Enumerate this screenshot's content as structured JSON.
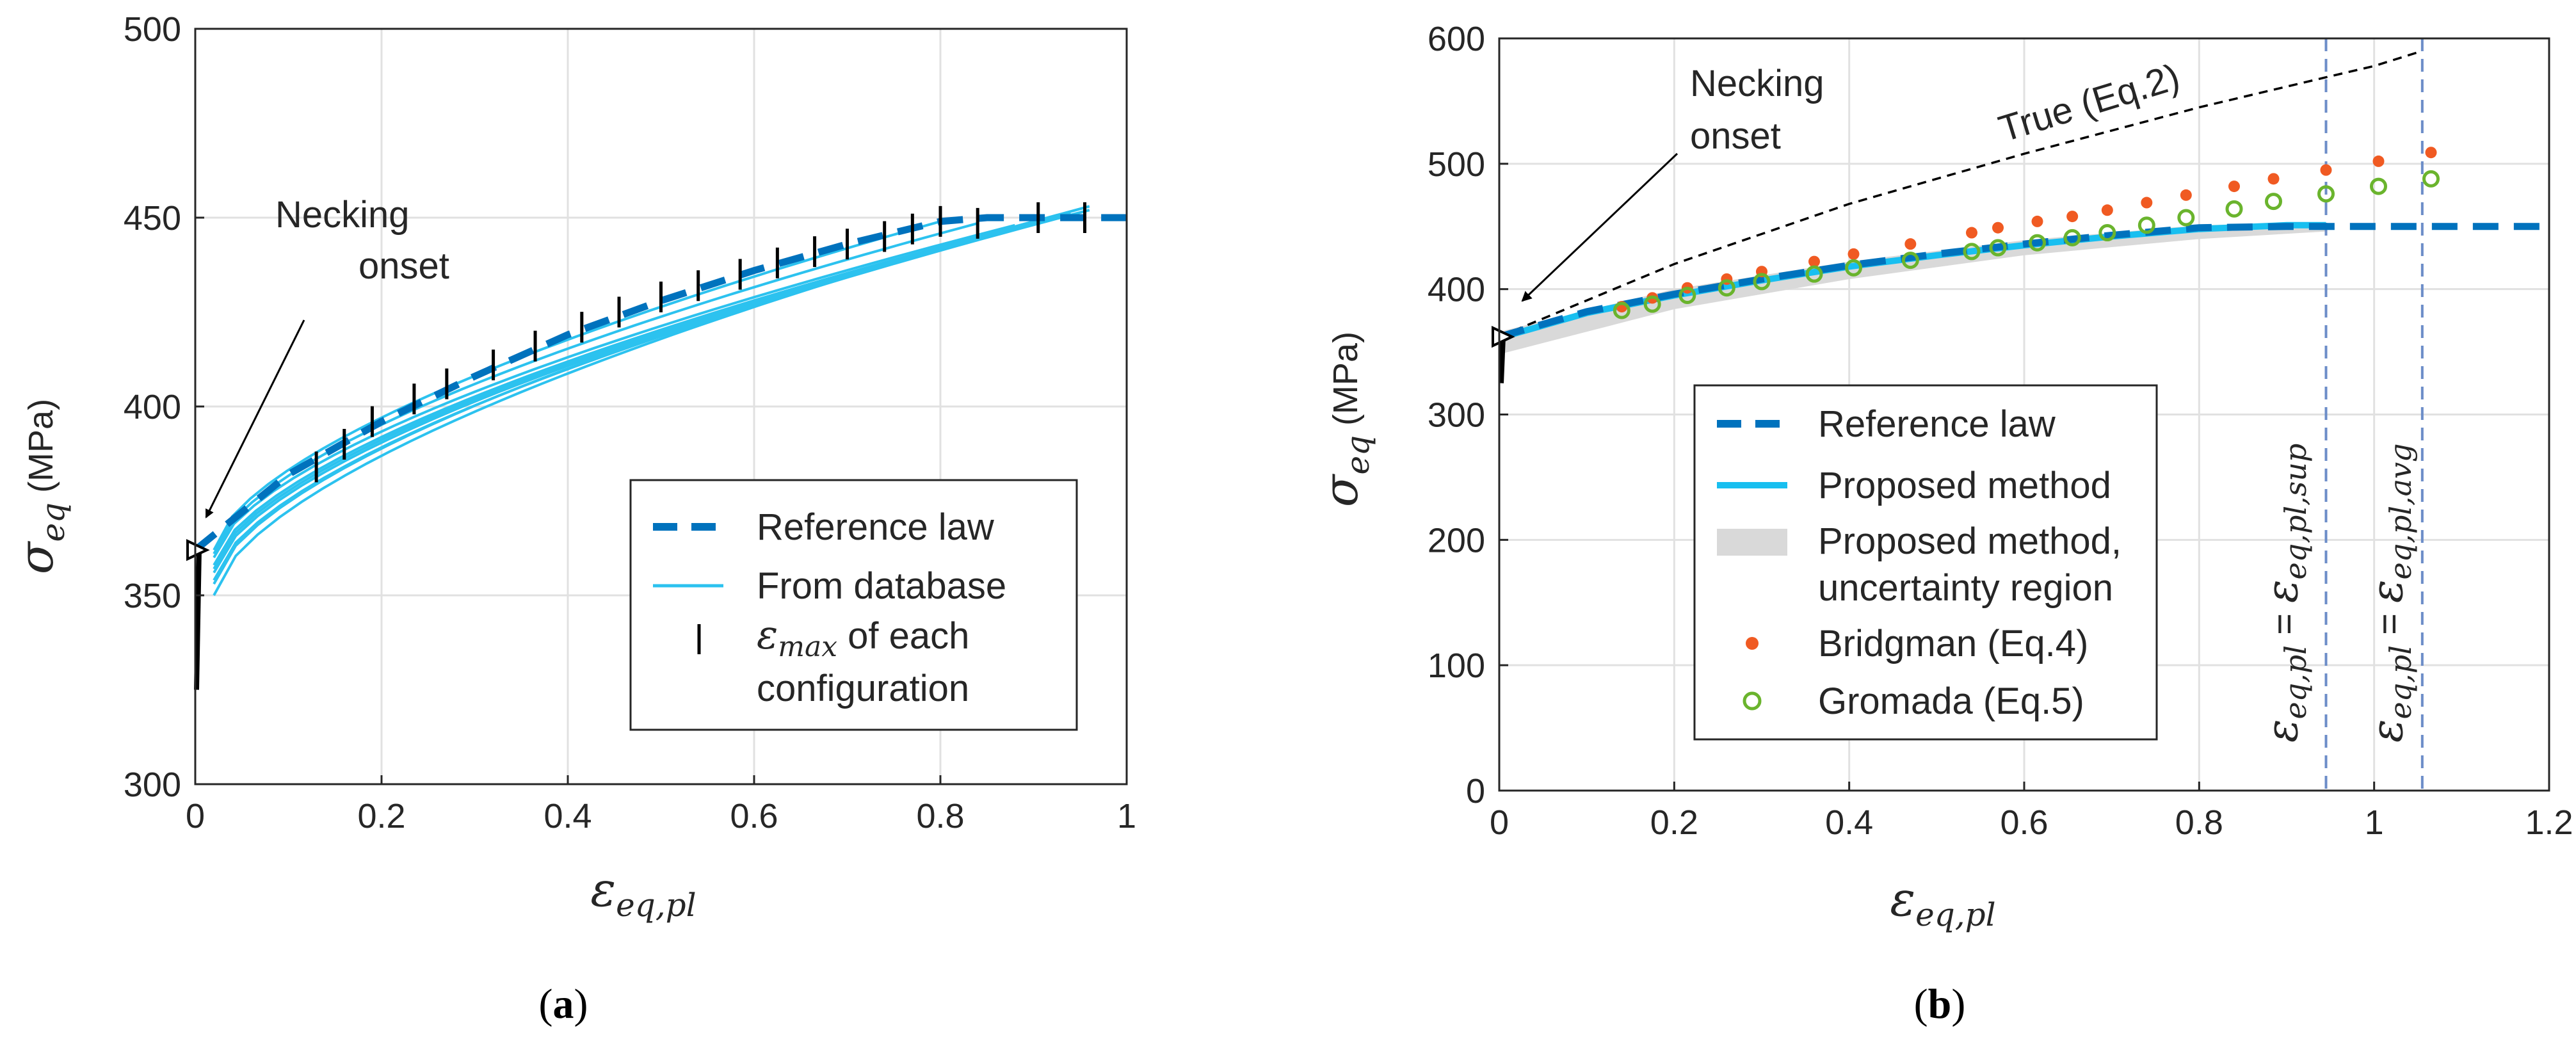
{
  "chart_data": [
    {
      "type": "line",
      "panel": "(a)",
      "xlabel": "ε_eq,pl",
      "ylabel": "σ_eq (MPa)",
      "xlim": [
        0,
        1
      ],
      "ylim": [
        300,
        500
      ],
      "xticks": [
        "0",
        "0.2",
        "0.4",
        "0.6",
        "0.8",
        "1"
      ],
      "yticks": [
        "300",
        "350",
        "400",
        "450",
        "500"
      ],
      "grid": true,
      "legend_position": "bottom-right",
      "annotation": "Necking onset",
      "legend": [
        "Reference law",
        "From database",
        "ε_max of each configuration"
      ],
      "reference_law": {
        "x": [
          0,
          0.1,
          0.2,
          0.3,
          0.4,
          0.5,
          0.6,
          0.7,
          0.8,
          0.85,
          0.9,
          0.95,
          1.0
        ],
        "y": [
          362,
          382,
          396,
          408,
          419,
          428,
          436,
          443,
          449,
          450,
          450,
          450,
          450
        ]
      },
      "database_curves": [
        {
          "x_end": 0.8,
          "y_start": 362,
          "y_end": 449
        },
        {
          "x_end": 0.84,
          "y_start": 361,
          "y_end": 448.5
        },
        {
          "x_end": 0.88,
          "y_start": 360,
          "y_end": 448
        },
        {
          "x_end": 0.92,
          "y_start": 358,
          "y_end": 450
        },
        {
          "x_end": 0.94,
          "y_start": 357,
          "y_end": 451
        },
        {
          "x_end": 0.96,
          "y_start": 356,
          "y_end": 452
        },
        {
          "x_end": 0.96,
          "y_start": 354,
          "y_end": 452
        },
        {
          "x_end": 0.96,
          "y_start": 353,
          "y_end": 453
        },
        {
          "x_end": 0.96,
          "y_start": 350,
          "y_end": 453
        }
      ],
      "eps_max_markers": {
        "x": [
          0.13,
          0.16,
          0.19,
          0.235,
          0.27,
          0.32,
          0.365,
          0.415,
          0.455,
          0.5,
          0.54,
          0.585,
          0.625,
          0.665,
          0.7,
          0.74,
          0.77,
          0.8,
          0.84,
          0.905,
          0.955
        ],
        "y": [
          384,
          390,
          396,
          402,
          406,
          411,
          416,
          421,
          425,
          429,
          432,
          435,
          438,
          441,
          443,
          445,
          447,
          449,
          448.5,
          450,
          450
        ]
      },
      "necking_onset_point": {
        "x": 0,
        "y": 362
      },
      "initial_vertical_segment": {
        "x": 0,
        "y": [
          325,
          362
        ]
      }
    },
    {
      "type": "line",
      "panel": "(b)",
      "xlabel": "ε_eq,pl",
      "ylabel": "σ_eq (MPa)",
      "xlim": [
        0,
        1.2
      ],
      "ylim": [
        0,
        600
      ],
      "xticks": [
        "0",
        "0.2",
        "0.4",
        "0.6",
        "0.8",
        "1",
        "1.2"
      ],
      "yticks": [
        "0",
        "100",
        "200",
        "300",
        "400",
        "500",
        "600"
      ],
      "grid": true,
      "legend_position": "bottom-left",
      "annotation": "Necking onset",
      "true_curve_label": "True (Eq.2)",
      "legend": [
        "Reference law",
        "Proposed method",
        "Proposed method,",
        "uncertainty region",
        "Bridgman (Eq.4)",
        "Gromada (Eq.5)"
      ],
      "vline_labels": [
        "ε_eq,pl = ε_eq,pl,sup",
        "ε_eq,pl = ε_eq,pl,avg"
      ],
      "vlines_x": [
        0.945,
        1.055
      ],
      "reference_law": {
        "x": [
          0,
          0.1,
          0.2,
          0.3,
          0.4,
          0.5,
          0.6,
          0.7,
          0.8,
          0.9,
          0.95,
          1.0,
          1.1,
          1.2
        ],
        "y": [
          362,
          382,
          396,
          408,
          419,
          428,
          436,
          443,
          449,
          450,
          450,
          450,
          450,
          450
        ]
      },
      "proposed_method": {
        "x": [
          0,
          0.1,
          0.2,
          0.3,
          0.4,
          0.5,
          0.6,
          0.7,
          0.8,
          0.9,
          0.945
        ],
        "y": [
          361,
          381,
          395,
          407,
          418,
          427,
          435,
          442,
          448,
          451,
          451
        ]
      },
      "uncertainty_region": {
        "x": [
          0,
          0.2,
          0.4,
          0.6,
          0.8,
          0.945
        ],
        "upper": [
          366,
          400,
          422,
          439,
          451,
          453
        ],
        "lower": [
          348,
          384,
          408,
          427,
          440,
          446
        ]
      },
      "true_eq2": {
        "x": [
          0,
          0.2,
          0.4,
          0.6,
          0.8,
          0.945,
          1.0,
          1.055
        ],
        "y": [
          362,
          420,
          468,
          508,
          545,
          569,
          578,
          590
        ]
      },
      "bridgman": {
        "x": [
          0.14,
          0.175,
          0.215,
          0.26,
          0.3,
          0.36,
          0.405,
          0.47,
          0.54,
          0.57,
          0.615,
          0.655,
          0.695,
          0.74,
          0.785,
          0.84,
          0.885,
          0.945,
          1.005,
          1.065
        ],
        "y": [
          386,
          393,
          401,
          408,
          414,
          422,
          428,
          436,
          445,
          449,
          454,
          458,
          463,
          469,
          475,
          482,
          488,
          495,
          502,
          509
        ]
      },
      "gromada": {
        "x": [
          0.14,
          0.175,
          0.215,
          0.26,
          0.3,
          0.36,
          0.405,
          0.47,
          0.54,
          0.57,
          0.615,
          0.655,
          0.695,
          0.74,
          0.785,
          0.84,
          0.885,
          0.945,
          1.005,
          1.065
        ],
        "y": [
          383,
          388,
          395,
          401,
          406,
          412,
          417,
          423,
          430,
          433,
          437,
          441,
          445,
          451,
          457,
          464,
          470,
          476,
          482,
          488
        ]
      },
      "necking_onset_point": {
        "x": 0,
        "y": 362
      },
      "initial_vertical_segment": {
        "x": 0,
        "y": [
          325,
          362
        ]
      }
    }
  ],
  "panel_labels": [
    "(a)",
    "(b)"
  ],
  "colors": {
    "reference_law": "#0072bd",
    "database": "#2cc2ef",
    "proposed_method": "#18bff0",
    "uncertainty": "#d9d9d9",
    "bridgman": "#f05a22",
    "gromada": "#6ab42d",
    "vline": "#6c8dc8",
    "true_curve": "#000000"
  }
}
